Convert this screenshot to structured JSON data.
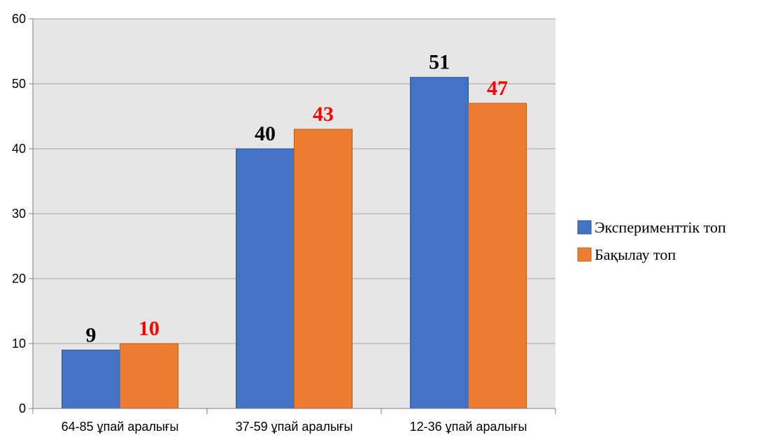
{
  "chart_data": {
    "type": "bar",
    "categories": [
      "64-85 ұпай аралығы",
      "37-59 ұпай аралығы",
      "12-36 ұпай аралығы"
    ],
    "series": [
      {
        "name": "Эксперименттік топ",
        "values": [
          9,
          40,
          51
        ],
        "color": "#4472C4",
        "label_color": "#000000"
      },
      {
        "name": "Бақылау топ",
        "values": [
          10,
          43,
          47
        ],
        "color": "#ED7D31",
        "label_color": "#FF0000"
      }
    ],
    "ylim": [
      0,
      60
    ],
    "yticks": [
      0,
      10,
      20,
      30,
      40,
      50,
      60
    ],
    "grid": true,
    "plot_background": "#E7E6E6",
    "legend_position": "right",
    "title": "",
    "xlabel": "",
    "ylabel": ""
  }
}
